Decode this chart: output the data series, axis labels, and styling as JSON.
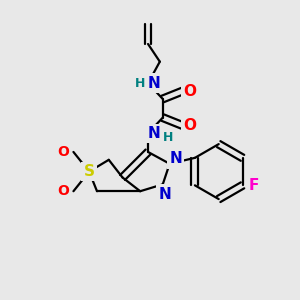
{
  "bg_color": "#e8e8e8",
  "bond_color": "#000000",
  "atom_colors": {
    "N": "#0000cc",
    "O": "#ff0000",
    "S": "#cccc00",
    "F": "#ff00cc",
    "H_label": "#008080",
    "C": "#000000"
  },
  "lw": 1.6,
  "fs": 11,
  "fs_s": 9
}
